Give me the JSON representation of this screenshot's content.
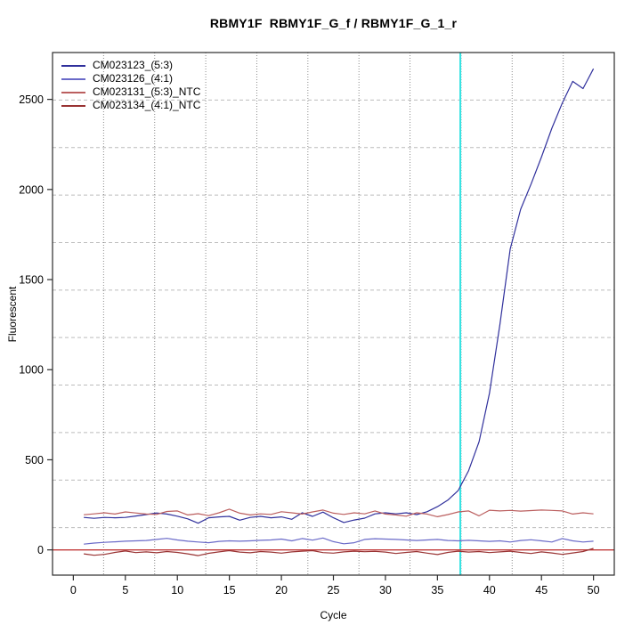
{
  "title": "RBMY1F  RBMY1F_G_f / RBMY1F_G_1_r",
  "chart_data": {
    "type": "line",
    "title": "RBMY1F  RBMY1F_G_f / RBMY1F_G_1_r",
    "xlabel": "Cycle",
    "ylabel": "Fluorescent",
    "x_ticks": [
      0,
      5,
      10,
      15,
      20,
      25,
      30,
      35,
      40,
      45,
      50
    ],
    "y_ticks": [
      0,
      500,
      1000,
      1500,
      2000,
      2500
    ],
    "xlim": [
      -2,
      52
    ],
    "ylim": [
      -140,
      2760
    ],
    "grid": {
      "on": true,
      "divisions": 11,
      "horizontal_style": "dashed",
      "vertical_style": "dotted",
      "horizontal_color": "#bcbcbc",
      "vertical_color": "#8a8a8a"
    },
    "legend_position": "top-left",
    "annotations": {
      "threshold_cycle_line": {
        "axis": "x",
        "value": 37.2,
        "color": "#35e3e3"
      },
      "zero_fluorescence_line": {
        "axis": "y",
        "value": 0,
        "color": "#c23b3b"
      }
    },
    "x": [
      1,
      2,
      3,
      4,
      5,
      6,
      7,
      8,
      9,
      10,
      11,
      12,
      13,
      14,
      15,
      16,
      17,
      18,
      19,
      20,
      21,
      22,
      23,
      24,
      25,
      26,
      27,
      28,
      29,
      30,
      31,
      32,
      33,
      34,
      35,
      36,
      37,
      38,
      39,
      40,
      41,
      42,
      43,
      44,
      45,
      46,
      47,
      48,
      49,
      50
    ],
    "series": [
      {
        "name": "CM023123_(5:3)",
        "color": "#30309c",
        "values": [
          180,
          175,
          180,
          178,
          180,
          188,
          196,
          205,
          199,
          187,
          172,
          148,
          178,
          183,
          186,
          165,
          180,
          186,
          178,
          183,
          170,
          206,
          186,
          210,
          178,
          152,
          166,
          176,
          200,
          206,
          200,
          206,
          196,
          212,
          240,
          276,
          330,
          440,
          600,
          870,
          1250,
          1670,
          1890,
          2030,
          2180,
          2340,
          2480,
          2600,
          2560,
          2670
        ]
      },
      {
        "name": "CM023126_(4:1)",
        "color": "#6a6ac8",
        "values": [
          32,
          38,
          42,
          45,
          48,
          50,
          52,
          58,
          64,
          55,
          48,
          44,
          40,
          47,
          50,
          48,
          50,
          53,
          55,
          60,
          50,
          63,
          54,
          66,
          46,
          34,
          40,
          58,
          62,
          60,
          58,
          55,
          52,
          55,
          58,
          52,
          50,
          53,
          50,
          47,
          50,
          44,
          52,
          56,
          50,
          44,
          63,
          50,
          44,
          48
        ]
      },
      {
        "name": "CM023131_(5:3)_NTC",
        "color": "#bb5f5f",
        "values": [
          195,
          200,
          206,
          199,
          211,
          205,
          199,
          197,
          213,
          216,
          194,
          201,
          190,
          206,
          226,
          204,
          194,
          200,
          197,
          212,
          206,
          199,
          211,
          221,
          204,
          197,
          206,
          200,
          216,
          199,
          194,
          187,
          206,
          199,
          184,
          196,
          211,
          216,
          189,
          220,
          216,
          219,
          215,
          218,
          221,
          219,
          216,
          199,
          206,
          200
        ]
      },
      {
        "name": "CM023134_(4:1)_NTC",
        "color": "#993333",
        "values": [
          -22,
          -30,
          -25,
          -14,
          -6,
          -15,
          -11,
          -16,
          -9,
          -14,
          -22,
          -32,
          -19,
          -11,
          -4,
          -12,
          -16,
          -9,
          -12,
          -18,
          -11,
          -7,
          -4,
          -15,
          -18,
          -11,
          -7,
          -10,
          -8,
          -12,
          -20,
          -14,
          -9,
          -18,
          -26,
          -14,
          -7,
          -12,
          -9,
          -15,
          -11,
          -7,
          -14,
          -20,
          -11,
          -17,
          -25,
          -17,
          -9,
          8
        ]
      }
    ]
  }
}
